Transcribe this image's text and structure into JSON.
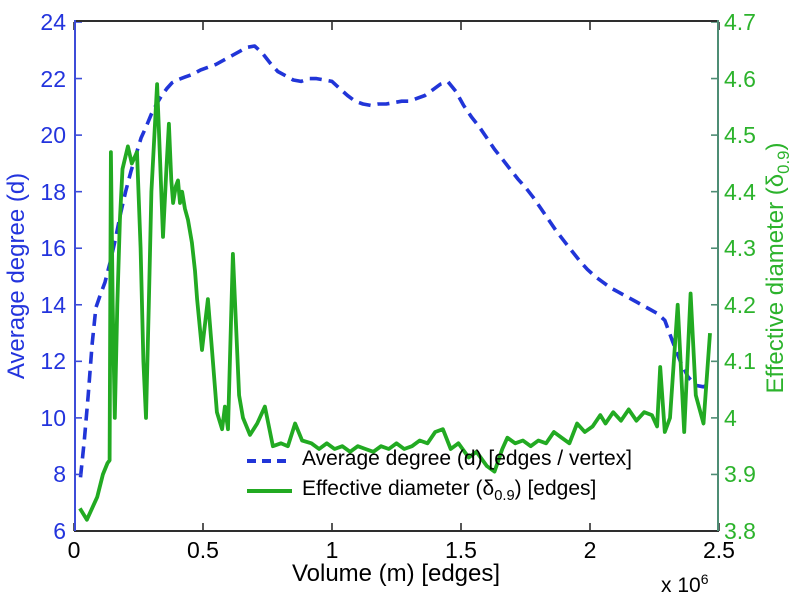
{
  "figure": {
    "background": "#ffffff",
    "plot_border_color": "#2e2e2e",
    "x_axis": {
      "label": "Volume (m) [edges]",
      "offset_pre": "x 10",
      "offset_sup": "6",
      "min": 0,
      "max": 2.5,
      "ticks": [
        0,
        0.5,
        1,
        1.5,
        2,
        2.5
      ],
      "tick_labels": [
        "0",
        "0.5",
        "1",
        "1.5",
        "2",
        "2.5"
      ],
      "color": "#000000"
    },
    "y_left": {
      "label": "Average degree (d)",
      "min": 6,
      "max": 24,
      "ticks": [
        24,
        22,
        20,
        18,
        16,
        14,
        12,
        10,
        8,
        6
      ],
      "tick_labels": [
        "24",
        "22",
        "20",
        "18",
        "16",
        "14",
        "12",
        "10",
        "8",
        "6"
      ],
      "text_color": "#2334dd",
      "spine_color": "#3d4cd8"
    },
    "y_right": {
      "label_pre": "Effective diameter (δ",
      "label_sub": "0.9",
      "label_post": ")",
      "min": 3.8,
      "max": 4.7,
      "ticks": [
        4.7,
        4.6,
        4.5,
        4.4,
        4.3,
        4.2,
        4.1,
        4,
        3.9,
        3.8
      ],
      "tick_labels": [
        "4.7",
        "4.6",
        "4.5",
        "4.4",
        "4.3",
        "4.2",
        "4.1",
        "4",
        "3.9",
        "3.8"
      ],
      "text_color": "#2cb32c",
      "spine_color": "#4e8d74"
    },
    "legend": {
      "items": [
        {
          "pre": "Average degree (d) [edges / vertex]",
          "sub": "",
          "post": "",
          "color": "#2135d8",
          "line_style": "dashed"
        },
        {
          "pre": "Effective diameter (δ",
          "sub": "0.9",
          "post": ") [edges]",
          "color": "#22aa22",
          "line_style": "solid"
        }
      ]
    }
  },
  "chart_data": {
    "type": "line",
    "title": "",
    "xlabel": "Volume (m) [edges]",
    "x_unit_multiplier": "x 10^6",
    "xlim": [
      0,
      2.5
    ],
    "ylabel_left": "Average degree (d)",
    "ylim_left": [
      6,
      24
    ],
    "ylabel_right": "Effective diameter (δ_0.9)",
    "ylim_right": [
      3.8,
      4.7
    ],
    "grid": false,
    "legend_position": "bottom-center-inside",
    "series": [
      {
        "name": "Average degree (d) [edges / vertex]",
        "axis": "left",
        "color": "#2135d8",
        "line_style": "dashed",
        "points": [
          [
            0.025,
            7.9
          ],
          [
            0.04,
            9.2
          ],
          [
            0.055,
            10.8
          ],
          [
            0.07,
            12.6
          ],
          [
            0.085,
            13.9
          ],
          [
            0.1,
            14.3
          ],
          [
            0.12,
            14.8
          ],
          [
            0.14,
            15.5
          ],
          [
            0.16,
            16.3
          ],
          [
            0.18,
            17.2
          ],
          [
            0.2,
            18.0
          ],
          [
            0.22,
            18.7
          ],
          [
            0.24,
            19.3
          ],
          [
            0.26,
            19.9
          ],
          [
            0.28,
            20.3
          ],
          [
            0.3,
            20.75
          ],
          [
            0.32,
            21.1
          ],
          [
            0.34,
            21.4
          ],
          [
            0.36,
            21.65
          ],
          [
            0.38,
            21.85
          ],
          [
            0.4,
            21.95
          ],
          [
            0.43,
            22.05
          ],
          [
            0.46,
            22.15
          ],
          [
            0.49,
            22.3
          ],
          [
            0.52,
            22.4
          ],
          [
            0.55,
            22.5
          ],
          [
            0.58,
            22.65
          ],
          [
            0.61,
            22.8
          ],
          [
            0.64,
            22.95
          ],
          [
            0.67,
            23.1
          ],
          [
            0.7,
            23.15
          ],
          [
            0.73,
            22.9
          ],
          [
            0.76,
            22.55
          ],
          [
            0.79,
            22.25
          ],
          [
            0.82,
            22.1
          ],
          [
            0.85,
            21.95
          ],
          [
            0.88,
            21.9
          ],
          [
            0.91,
            22.0
          ],
          [
            0.94,
            22.0
          ],
          [
            0.97,
            21.95
          ],
          [
            1.0,
            21.9
          ],
          [
            1.03,
            21.65
          ],
          [
            1.06,
            21.4
          ],
          [
            1.09,
            21.2
          ],
          [
            1.12,
            21.1
          ],
          [
            1.15,
            21.05
          ],
          [
            1.18,
            21.1
          ],
          [
            1.21,
            21.1
          ],
          [
            1.24,
            21.15
          ],
          [
            1.27,
            21.2
          ],
          [
            1.3,
            21.2
          ],
          [
            1.33,
            21.3
          ],
          [
            1.36,
            21.4
          ],
          [
            1.39,
            21.6
          ],
          [
            1.42,
            21.8
          ],
          [
            1.45,
            21.88
          ],
          [
            1.48,
            21.55
          ],
          [
            1.51,
            21.05
          ],
          [
            1.54,
            20.65
          ],
          [
            1.57,
            20.3
          ],
          [
            1.6,
            19.9
          ],
          [
            1.63,
            19.5
          ],
          [
            1.66,
            19.15
          ],
          [
            1.69,
            18.8
          ],
          [
            1.72,
            18.45
          ],
          [
            1.75,
            18.15
          ],
          [
            1.78,
            17.8
          ],
          [
            1.81,
            17.4
          ],
          [
            1.84,
            17.0
          ],
          [
            1.87,
            16.6
          ],
          [
            1.9,
            16.25
          ],
          [
            1.93,
            15.9
          ],
          [
            1.96,
            15.55
          ],
          [
            1.99,
            15.25
          ],
          [
            2.02,
            15.0
          ],
          [
            2.05,
            14.8
          ],
          [
            2.08,
            14.6
          ],
          [
            2.11,
            14.45
          ],
          [
            2.14,
            14.3
          ],
          [
            2.17,
            14.15
          ],
          [
            2.2,
            14.0
          ],
          [
            2.23,
            13.85
          ],
          [
            2.26,
            13.7
          ],
          [
            2.29,
            13.45
          ],
          [
            2.32,
            12.7
          ],
          [
            2.35,
            12.0
          ],
          [
            2.38,
            11.45
          ],
          [
            2.41,
            11.15
          ],
          [
            2.44,
            11.1
          ],
          [
            2.46,
            11.2
          ]
        ]
      },
      {
        "name": "Effective diameter (δ_0.9) [edges]",
        "axis": "right",
        "color": "#22aa22",
        "line_style": "solid",
        "points": [
          [
            0.023,
            3.84
          ],
          [
            0.05,
            3.82
          ],
          [
            0.09,
            3.86
          ],
          [
            0.112,
            3.9
          ],
          [
            0.13,
            3.92
          ],
          [
            0.138,
            3.925
          ],
          [
            0.143,
            4.47
          ],
          [
            0.15,
            4.2
          ],
          [
            0.158,
            4.0
          ],
          [
            0.168,
            4.2
          ],
          [
            0.178,
            4.35
          ],
          [
            0.188,
            4.44
          ],
          [
            0.209,
            4.48
          ],
          [
            0.224,
            4.45
          ],
          [
            0.244,
            4.47
          ],
          [
            0.258,
            4.3
          ],
          [
            0.269,
            4.1
          ],
          [
            0.279,
            4.0
          ],
          [
            0.29,
            4.2
          ],
          [
            0.3,
            4.4
          ],
          [
            0.322,
            4.59
          ],
          [
            0.334,
            4.45
          ],
          [
            0.345,
            4.32
          ],
          [
            0.358,
            4.44
          ],
          [
            0.368,
            4.52
          ],
          [
            0.377,
            4.42
          ],
          [
            0.384,
            4.38
          ],
          [
            0.395,
            4.41
          ],
          [
            0.403,
            4.42
          ],
          [
            0.411,
            4.38
          ],
          [
            0.419,
            4.4
          ],
          [
            0.43,
            4.37
          ],
          [
            0.442,
            4.35
          ],
          [
            0.457,
            4.31
          ],
          [
            0.469,
            4.26
          ],
          [
            0.477,
            4.21
          ],
          [
            0.496,
            4.12
          ],
          [
            0.519,
            4.21
          ],
          [
            0.535,
            4.12
          ],
          [
            0.554,
            4.01
          ],
          [
            0.574,
            3.98
          ],
          [
            0.585,
            4.02
          ],
          [
            0.597,
            3.98
          ],
          [
            0.616,
            4.29
          ],
          [
            0.64,
            4.04
          ],
          [
            0.655,
            4.0
          ],
          [
            0.682,
            3.97
          ],
          [
            0.71,
            3.99
          ],
          [
            0.74,
            4.02
          ],
          [
            0.771,
            3.95
          ],
          [
            0.802,
            3.955
          ],
          [
            0.829,
            3.95
          ],
          [
            0.857,
            3.99
          ],
          [
            0.884,
            3.96
          ],
          [
            0.92,
            3.955
          ],
          [
            0.95,
            3.945
          ],
          [
            0.98,
            3.955
          ],
          [
            1.01,
            3.945
          ],
          [
            1.04,
            3.95
          ],
          [
            1.07,
            3.94
          ],
          [
            1.1,
            3.95
          ],
          [
            1.13,
            3.945
          ],
          [
            1.16,
            3.94
          ],
          [
            1.19,
            3.95
          ],
          [
            1.22,
            3.945
          ],
          [
            1.25,
            3.955
          ],
          [
            1.28,
            3.945
          ],
          [
            1.31,
            3.95
          ],
          [
            1.34,
            3.96
          ],
          [
            1.37,
            3.955
          ],
          [
            1.4,
            3.975
          ],
          [
            1.43,
            3.98
          ],
          [
            1.46,
            3.945
          ],
          [
            1.49,
            3.955
          ],
          [
            1.53,
            3.93
          ],
          [
            1.56,
            3.94
          ],
          [
            1.6,
            3.915
          ],
          [
            1.63,
            3.905
          ],
          [
            1.66,
            3.945
          ],
          [
            1.68,
            3.965
          ],
          [
            1.71,
            3.955
          ],
          [
            1.74,
            3.96
          ],
          [
            1.77,
            3.95
          ],
          [
            1.8,
            3.96
          ],
          [
            1.83,
            3.955
          ],
          [
            1.86,
            3.975
          ],
          [
            1.89,
            3.965
          ],
          [
            1.92,
            3.955
          ],
          [
            1.95,
            3.99
          ],
          [
            1.98,
            3.975
          ],
          [
            2.01,
            3.985
          ],
          [
            2.04,
            4.005
          ],
          [
            2.06,
            3.99
          ],
          [
            2.09,
            4.01
          ],
          [
            2.12,
            3.995
          ],
          [
            2.15,
            4.015
          ],
          [
            2.18,
            3.995
          ],
          [
            2.21,
            4.01
          ],
          [
            2.24,
            4.005
          ],
          [
            2.26,
            3.985
          ],
          [
            2.272,
            4.09
          ],
          [
            2.29,
            3.975
          ],
          [
            2.31,
            4.0
          ],
          [
            2.34,
            4.2
          ],
          [
            2.365,
            3.975
          ],
          [
            2.39,
            4.22
          ],
          [
            2.41,
            4.04
          ],
          [
            2.44,
            3.99
          ],
          [
            2.465,
            4.15
          ]
        ]
      }
    ]
  }
}
